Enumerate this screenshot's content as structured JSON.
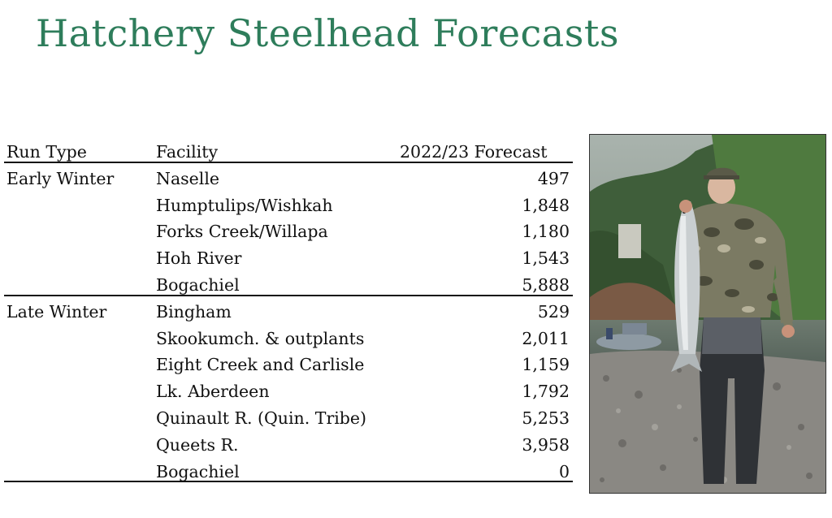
{
  "title": "Hatchery Steelhead Forecasts",
  "table": {
    "headers": {
      "run_type": "Run Type",
      "facility": "Facility",
      "forecast": "2022/23 Forecast"
    },
    "rows": [
      {
        "run_type": "Early Winter",
        "facility": "Naselle",
        "forecast": "497"
      },
      {
        "run_type": "",
        "facility": "Humptulips/Wishkah",
        "forecast": "1,848"
      },
      {
        "run_type": "",
        "facility": "Forks Creek/Willapa",
        "forecast": "1,180"
      },
      {
        "run_type": "",
        "facility": "Hoh River",
        "forecast": "1,543"
      },
      {
        "run_type": "",
        "facility": "Bogachiel",
        "forecast": "5,888"
      },
      {
        "run_type": "Late Winter",
        "facility": "Bingham",
        "forecast": "529"
      },
      {
        "run_type": "",
        "facility": "Skookumch. & outplants",
        "forecast": "2,011"
      },
      {
        "run_type": "",
        "facility": "Eight Creek and Carlisle",
        "forecast": "1,159"
      },
      {
        "run_type": "",
        "facility": "Lk. Aberdeen",
        "forecast": "1,792"
      },
      {
        "run_type": "",
        "facility": "Quinault R. (Quin. Tribe)",
        "forecast": "5,253"
      },
      {
        "run_type": "",
        "facility": "Queets R.",
        "forecast": "3,958"
      },
      {
        "run_type": "",
        "facility": "Bogachiel",
        "forecast": "0"
      }
    ]
  },
  "colors": {
    "title": "#2e7d5b",
    "text": "#111111"
  },
  "photo_icon": "photo-of-angler-holding-steelhead"
}
